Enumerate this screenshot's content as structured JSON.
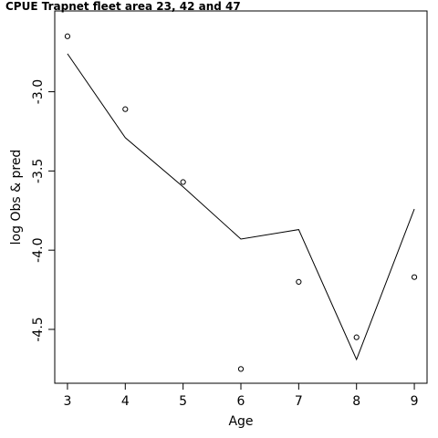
{
  "chart_data": {
    "type": "line",
    "title": "CPUE Trapnet fleet area 23, 42 and 47",
    "xlabel": "Age",
    "ylabel": "log Obs & pred",
    "x": [
      3,
      4,
      5,
      6,
      7,
      8,
      9
    ],
    "x_ticks": [
      "3",
      "4",
      "5",
      "6",
      "7",
      "8",
      "9"
    ],
    "y_ticks": [
      -3.0,
      -3.5,
      -4.0,
      -4.5
    ],
    "y_tick_labels": [
      "-3.0",
      "-3.5",
      "-4.0",
      "-4.5"
    ],
    "xlim": [
      2.78,
      9.22
    ],
    "ylim": [
      -4.84,
      -2.49
    ],
    "series": [
      {
        "kind": "points",
        "marker": "open-circle",
        "values": [
          -2.65,
          -3.11,
          -3.57,
          -4.75,
          -4.2,
          -4.55,
          -4.17
        ]
      },
      {
        "kind": "line",
        "values": [
          -2.76,
          -3.29,
          -3.6,
          -3.93,
          -3.87,
          -4.69,
          -3.74
        ]
      }
    ],
    "grid": false,
    "legend": "none",
    "colors": {
      "foreground": "#000000",
      "background": "#ffffff"
    }
  }
}
